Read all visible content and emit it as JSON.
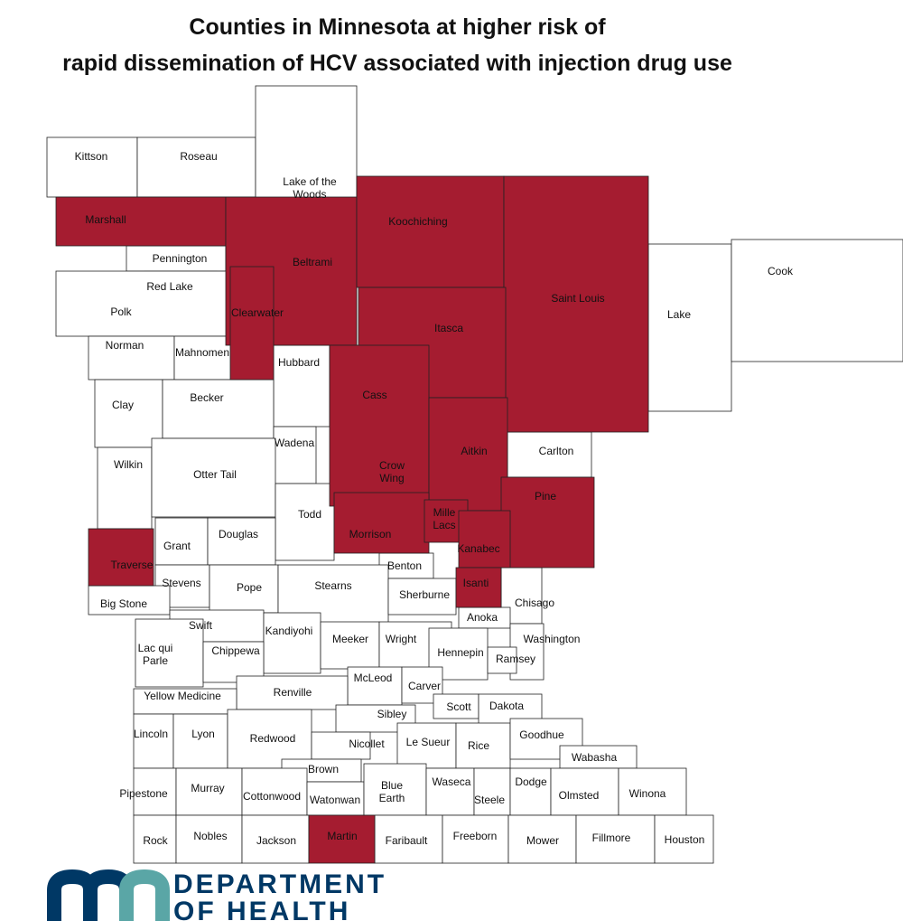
{
  "title_lines": [
    "Counties in Minnesota at higher risk of",
    "rapid dissemination of HCV associated with injection drug use"
  ],
  "logo": {
    "line1": "DEPARTMENT",
    "line2": "OF HEALTH"
  },
  "counties": [
    {
      "name": "Kittson",
      "color": "#ffffff"
    },
    {
      "name": "Roseau",
      "color": "#ffffff"
    },
    {
      "name": "Lake of the\nWoods",
      "color": "#ffffff"
    },
    {
      "name": "Marshall",
      "color": "#a51c30"
    },
    {
      "name": "Beltrami",
      "color": "#a51c30"
    },
    {
      "name": "Koochiching",
      "color": "#a51c30"
    },
    {
      "name": "Saint Louis",
      "color": "#a51c30"
    },
    {
      "name": "Lake",
      "color": "#ffffff"
    },
    {
      "name": "Cook",
      "color": "#ffffff"
    },
    {
      "name": "Pennington",
      "color": "#ffffff"
    },
    {
      "name": "Red Lake",
      "color": "#ffffff"
    },
    {
      "name": "Polk",
      "color": "#ffffff"
    },
    {
      "name": "Clearwater",
      "color": "#a51c30"
    },
    {
      "name": "Itasca",
      "color": "#a51c30"
    },
    {
      "name": "Norman",
      "color": "#ffffff"
    },
    {
      "name": "Mahnomen",
      "color": "#ffffff"
    },
    {
      "name": "Hubbard",
      "color": "#ffffff"
    },
    {
      "name": "Cass",
      "color": "#a51c30"
    },
    {
      "name": "Clay",
      "color": "#ffffff"
    },
    {
      "name": "Becker",
      "color": "#ffffff"
    },
    {
      "name": "Wadena",
      "color": "#ffffff"
    },
    {
      "name": "Aitkin",
      "color": "#a51c30"
    },
    {
      "name": "Carlton",
      "color": "#ffffff"
    },
    {
      "name": "Crow\nWing",
      "color": "#ffffff"
    },
    {
      "name": "Wilkin",
      "color": "#ffffff"
    },
    {
      "name": "Otter Tail",
      "color": "#ffffff"
    },
    {
      "name": "Todd",
      "color": "#ffffff"
    },
    {
      "name": "Pine",
      "color": "#a51c30"
    },
    {
      "name": "Morrison",
      "color": "#a51c30"
    },
    {
      "name": "Mille\nLacs",
      "color": "#a51c30"
    },
    {
      "name": "Kanabec",
      "color": "#a51c30"
    },
    {
      "name": "Grant",
      "color": "#ffffff"
    },
    {
      "name": "Douglas",
      "color": "#ffffff"
    },
    {
      "name": "Traverse",
      "color": "#a51c30"
    },
    {
      "name": "Benton",
      "color": "#ffffff"
    },
    {
      "name": "Isanti",
      "color": "#a51c30"
    },
    {
      "name": "Stevens",
      "color": "#ffffff"
    },
    {
      "name": "Pope",
      "color": "#ffffff"
    },
    {
      "name": "Stearns",
      "color": "#ffffff"
    },
    {
      "name": "Sherburne",
      "color": "#ffffff"
    },
    {
      "name": "Chisago",
      "color": "#ffffff"
    },
    {
      "name": "Big Stone",
      "color": "#ffffff"
    },
    {
      "name": "Anoka",
      "color": "#ffffff"
    },
    {
      "name": "Swift",
      "color": "#ffffff"
    },
    {
      "name": "Kandiyohi",
      "color": "#ffffff"
    },
    {
      "name": "Meeker",
      "color": "#ffffff"
    },
    {
      "name": "Wright",
      "color": "#ffffff"
    },
    {
      "name": "Washington",
      "color": "#ffffff"
    },
    {
      "name": "Lac qui\nParle",
      "color": "#ffffff"
    },
    {
      "name": "Chippewa",
      "color": "#ffffff"
    },
    {
      "name": "Hennepin",
      "color": "#ffffff"
    },
    {
      "name": "Ramsey",
      "color": "#ffffff"
    },
    {
      "name": "McLeod",
      "color": "#ffffff"
    },
    {
      "name": "Carver",
      "color": "#ffffff"
    },
    {
      "name": "Renville",
      "color": "#ffffff"
    },
    {
      "name": "Yellow Medicine",
      "color": "#ffffff"
    },
    {
      "name": "Scott",
      "color": "#ffffff"
    },
    {
      "name": "Dakota",
      "color": "#ffffff"
    },
    {
      "name": "Sibley",
      "color": "#ffffff"
    },
    {
      "name": "Lincoln",
      "color": "#ffffff"
    },
    {
      "name": "Lyon",
      "color": "#ffffff"
    },
    {
      "name": "Redwood",
      "color": "#ffffff"
    },
    {
      "name": "Nicollet",
      "color": "#ffffff"
    },
    {
      "name": "Le Sueur",
      "color": "#ffffff"
    },
    {
      "name": "Rice",
      "color": "#ffffff"
    },
    {
      "name": "Goodhue",
      "color": "#ffffff"
    },
    {
      "name": "Wabasha",
      "color": "#ffffff"
    },
    {
      "name": "Brown",
      "color": "#ffffff"
    },
    {
      "name": "Pipestone",
      "color": "#ffffff"
    },
    {
      "name": "Murray",
      "color": "#ffffff"
    },
    {
      "name": "Cottonwood",
      "color": "#ffffff"
    },
    {
      "name": "Watonwan",
      "color": "#ffffff"
    },
    {
      "name": "Blue\nEarth",
      "color": "#ffffff"
    },
    {
      "name": "Waseca",
      "color": "#ffffff"
    },
    {
      "name": "Steele",
      "color": "#ffffff"
    },
    {
      "name": "Dodge",
      "color": "#ffffff"
    },
    {
      "name": "Olmsted",
      "color": "#ffffff"
    },
    {
      "name": "Winona",
      "color": "#ffffff"
    },
    {
      "name": "Rock",
      "color": "#ffffff"
    },
    {
      "name": "Nobles",
      "color": "#ffffff"
    },
    {
      "name": "Jackson",
      "color": "#ffffff"
    },
    {
      "name": "Martin",
      "color": "#a51c30"
    },
    {
      "name": "Faribault",
      "color": "#ffffff"
    },
    {
      "name": "Freeborn",
      "color": "#ffffff"
    },
    {
      "name": "Mower",
      "color": "#ffffff"
    },
    {
      "name": "Fillmore",
      "color": "#ffffff"
    },
    {
      "name": "Houston",
      "color": "#ffffff"
    }
  ]
}
